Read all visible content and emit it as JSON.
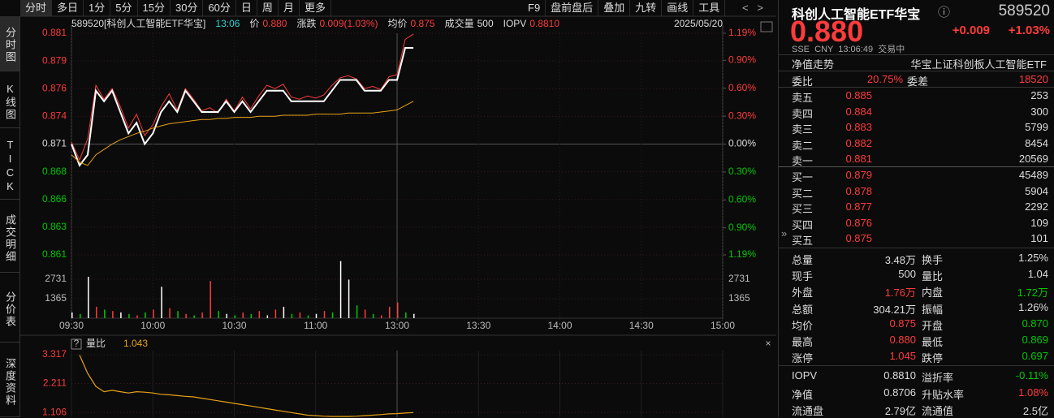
{
  "toolbar": {
    "left": [
      "分时",
      "多日",
      "1分",
      "5分",
      "15分",
      "30分",
      "60分",
      "日",
      "周",
      "月",
      "更多"
    ],
    "right": [
      "F9",
      "盘前盘后",
      "叠加",
      "九转",
      "画线",
      "工具"
    ]
  },
  "side_tabs": [
    "分时图",
    "K线图",
    "TICK",
    "成交明细",
    "分价表",
    "深度资料"
  ],
  "price_chart": {
    "header": [
      {
        "text": "589520[科创人工智能ETF华宝]",
        "color": "#dddddd"
      },
      {
        "text": "13:06",
        "color": "#2ad4d4"
      },
      {
        "text": "价",
        "color": "#dddddd"
      },
      {
        "text": "0.880",
        "color": "#ff3b3b"
      },
      {
        "text": "涨跌",
        "color": "#dddddd"
      },
      {
        "text": "0.009(1.03%)",
        "color": "#ff3b3b"
      },
      {
        "text": "均价",
        "color": "#dddddd"
      },
      {
        "text": "0.875",
        "color": "#ff3b3b"
      },
      {
        "text": "成交量",
        "color": "#dddddd"
      },
      {
        "text": "500",
        "color": "#dddddd"
      },
      {
        "text": "IOPV",
        "color": "#dddddd"
      },
      {
        "text": "0.8810",
        "color": "#ff3b3b"
      }
    ],
    "date": "2025/05/20",
    "xlim": [
      0,
      240
    ],
    "xticks": [
      {
        "value": 0,
        "label": "09:30"
      },
      {
        "value": 30,
        "label": "10:00"
      },
      {
        "value": 60,
        "label": "10:30"
      },
      {
        "value": 90,
        "label": "11:00"
      },
      {
        "value": 120,
        "label": "13:00"
      },
      {
        "value": 150,
        "label": "13:30"
      },
      {
        "value": 180,
        "label": "14:00"
      },
      {
        "value": 210,
        "label": "14:30"
      },
      {
        "value": 240,
        "label": "15:00"
      }
    ],
    "ylim": [
      0.86063,
      0.88137
    ],
    "yticks": [
      {
        "value": 0.88137,
        "label": "0.881"
      },
      {
        "value": 0.87878,
        "label": "0.879"
      },
      {
        "value": 0.87619,
        "label": "0.876"
      },
      {
        "value": 0.87359,
        "label": "0.874"
      },
      {
        "value": 0.871,
        "label": "0.871"
      },
      {
        "value": 0.86841,
        "label": "0.868"
      },
      {
        "value": 0.86581,
        "label": "0.866"
      },
      {
        "value": 0.86322,
        "label": "0.863"
      },
      {
        "value": 0.86063,
        "label": "0.861"
      }
    ],
    "pct_lim": [
      -1.19,
      1.19
    ],
    "pct_ticks": [
      {
        "value": 1.19,
        "label": "1.19%"
      },
      {
        "value": 0.9,
        "label": "0.90%"
      },
      {
        "value": 0.6,
        "label": "0.60%"
      },
      {
        "value": 0.3,
        "label": "0.30%"
      },
      {
        "value": 0,
        "label": "0.00%"
      },
      {
        "value": -0.3,
        "label": "0.30%"
      },
      {
        "value": -0.6,
        "label": "0.60%"
      },
      {
        "value": -0.9,
        "label": "0.90%"
      },
      {
        "value": -1.19,
        "label": "1.19%"
      }
    ],
    "x": [
      0,
      3,
      6,
      9,
      12,
      15,
      18,
      21,
      24,
      27,
      30,
      33,
      36,
      39,
      42,
      45,
      48,
      51,
      54,
      57,
      60,
      63,
      66,
      69,
      72,
      75,
      78,
      81,
      84,
      87,
      90,
      93,
      96,
      99,
      102,
      105,
      108,
      111,
      114,
      117,
      120,
      123,
      126
    ],
    "lines": [
      {
        "color": "#ff3b3b",
        "values": [
          0.8712,
          0.8695,
          0.8715,
          0.8765,
          0.8752,
          0.8762,
          0.8745,
          0.8725,
          0.8738,
          0.8718,
          0.8728,
          0.8745,
          0.8757,
          0.8742,
          0.8762,
          0.8752,
          0.8741,
          0.8744,
          0.8739,
          0.8752,
          0.8741,
          0.8754,
          0.8743,
          0.8755,
          0.8765,
          0.8762,
          0.8766,
          0.8754,
          0.8752,
          0.8755,
          0.8753,
          0.8756,
          0.8765,
          0.8772,
          0.8774,
          0.8771,
          0.8762,
          0.8764,
          0.8761,
          0.8773,
          0.8775,
          0.8808,
          0.8813
        ]
      },
      {
        "color": "#ffffff",
        "values": [
          0.871,
          0.869,
          0.87,
          0.876,
          0.875,
          0.876,
          0.874,
          0.872,
          0.873,
          0.871,
          0.872,
          0.874,
          0.875,
          0.874,
          0.876,
          0.875,
          0.874,
          0.874,
          0.874,
          0.875,
          0.874,
          0.875,
          0.874,
          0.875,
          0.876,
          0.876,
          0.876,
          0.875,
          0.875,
          0.875,
          0.875,
          0.875,
          0.876,
          0.877,
          0.877,
          0.877,
          0.876,
          0.876,
          0.876,
          0.877,
          0.877,
          0.88,
          0.88
        ]
      },
      {
        "color": "#e8a317",
        "values": [
          0.87,
          0.8693,
          0.869,
          0.87,
          0.8705,
          0.871,
          0.8714,
          0.8717,
          0.872,
          0.8722,
          0.8725,
          0.8727,
          0.8729,
          0.873,
          0.8731,
          0.8732,
          0.8733,
          0.8733,
          0.8734,
          0.8734,
          0.8735,
          0.8735,
          0.8735,
          0.8736,
          0.8736,
          0.8736,
          0.8737,
          0.8737,
          0.8737,
          0.8737,
          0.8738,
          0.8738,
          0.8738,
          0.8738,
          0.8739,
          0.8739,
          0.8739,
          0.8739,
          0.874,
          0.8741,
          0.8742,
          0.8746,
          0.875
        ]
      }
    ]
  },
  "volume_chart": {
    "ylim": [
      0,
      4096
    ],
    "yticks": [
      1365,
      2731
    ],
    "values": [
      400,
      300,
      2900,
      800,
      600,
      500,
      400,
      300,
      200,
      400,
      600,
      2200,
      700,
      500,
      300,
      200,
      400,
      2600,
      500,
      300,
      200,
      400,
      300,
      500,
      200,
      600,
      800,
      300,
      400,
      200,
      300,
      500,
      400,
      4000,
      2700,
      900,
      600,
      300,
      200,
      800,
      1100,
      400,
      300
    ],
    "colors": [
      "#ffffff",
      "#00c800",
      "#ffffff",
      "#ff3b3b",
      "#00c800",
      "#ff3b3b",
      "#ffffff",
      "#00c800",
      "#ff3b3b",
      "#00c800",
      "#ff3b3b",
      "#ffffff",
      "#ff3b3b",
      "#00c800",
      "#ff3b3b",
      "#00c800",
      "#ff3b3b",
      "#ff3b3b",
      "#00c800",
      "#ffffff",
      "#00c800",
      "#ff3b3b",
      "#00c800",
      "#ff3b3b",
      "#ffffff",
      "#ff3b3b",
      "#ffffff",
      "#00c800",
      "#ff3b3b",
      "#00c800",
      "#ffffff",
      "#ff3b3b",
      "#00c800",
      "#ffffff",
      "#ffffff",
      "#00c800",
      "#ff3b3b",
      "#00c800",
      "#ff3b3b",
      "#ff3b3b",
      "#ff3b3b",
      "#00c800",
      "#ffffff"
    ]
  },
  "ratio_chart": {
    "help": "?",
    "label": "量比",
    "value_text": "1.043",
    "close": "×",
    "color": "#e8a317",
    "ylim": [
      0.922,
      3.317
    ],
    "yticks": [
      3.317,
      2.211,
      1.106
    ],
    "values": [
      null,
      3.3,
      2.6,
      2.1,
      1.9,
      1.95,
      1.9,
      1.85,
      1.9,
      1.88,
      1.85,
      1.8,
      1.78,
      1.75,
      1.72,
      1.7,
      1.65,
      1.6,
      1.55,
      1.5,
      1.45,
      1.4,
      1.35,
      1.3,
      1.25,
      1.2,
      1.15,
      1.1,
      1.05,
      1.0,
      0.98,
      0.96,
      0.95,
      0.95,
      0.95,
      0.96,
      0.98,
      1.0,
      1.02,
      1.05,
      1.06,
      1.08,
      1.1
    ]
  },
  "quote": {
    "name": "科创人工智能ETF华宝",
    "info_icon": "ⓘ",
    "code": "589520",
    "price": "0.880",
    "change": "+0.009",
    "change_pct": "+1.03%",
    "meta": "SSE  CNY  13:06:49  交易中",
    "nav_tab": "净值走势",
    "full_name": "华宝上证科创板人工智能ETF",
    "weibi": {
      "label": "委比",
      "value": "20.75%",
      "label2": "委差",
      "value2": "18520"
    },
    "asks": [
      [
        "卖五",
        "0.885",
        "253"
      ],
      [
        "卖四",
        "0.884",
        "300"
      ],
      [
        "卖三",
        "0.883",
        "5799"
      ],
      [
        "卖二",
        "0.882",
        "8454"
      ],
      [
        "卖一",
        "0.881",
        "20569"
      ]
    ],
    "bids": [
      [
        "买一",
        "0.879",
        "45489"
      ],
      [
        "买二",
        "0.878",
        "5904"
      ],
      [
        "买三",
        "0.877",
        "2292"
      ],
      [
        "买四",
        "0.876",
        "109"
      ],
      [
        "买五",
        "0.875",
        "101"
      ]
    ],
    "stats": [
      [
        {
          "label": "总量",
          "value": "3.48万",
          "color": "#dddddd"
        },
        {
          "label": "换手",
          "value": "1.25%",
          "color": "#dddddd"
        }
      ],
      [
        {
          "label": "现手",
          "value": "500",
          "color": "#dddddd"
        },
        {
          "label": "量比",
          "value": "1.04",
          "color": "#dddddd"
        }
      ],
      [
        {
          "label": "外盘",
          "value": "1.76万",
          "color": "#ff3b3b"
        },
        {
          "label": "内盘",
          "value": "1.72万",
          "color": "#00c800"
        }
      ],
      [
        {
          "label": "总额",
          "value": "304.21万",
          "color": "#dddddd"
        },
        {
          "label": "振幅",
          "value": "1.26%",
          "color": "#dddddd"
        }
      ],
      [
        {
          "label": "均价",
          "value": "0.875",
          "color": "#ff3b3b"
        },
        {
          "label": "开盘",
          "value": "0.870",
          "color": "#00c800"
        }
      ],
      [
        {
          "label": "最高",
          "value": "0.880",
          "color": "#ff3b3b"
        },
        {
          "label": "最低",
          "value": "0.869",
          "color": "#00c800"
        }
      ],
      [
        {
          "label": "涨停",
          "value": "1.045",
          "color": "#ff3b3b"
        },
        {
          "label": "跌停",
          "value": "0.697",
          "color": "#00c800"
        }
      ],
      [
        {
          "label": "IOPV",
          "value": "0.8810",
          "color": "#dddddd"
        },
        {
          "label": "溢折率",
          "value": "-0.11%",
          "color": "#00c800"
        }
      ],
      [
        {
          "label": "净值",
          "value": "0.8706",
          "color": "#dddddd"
        },
        {
          "label": "升贴水率",
          "value": "1.08%",
          "color": "#ff3b3b"
        }
      ],
      [
        {
          "label": "流通盘",
          "value": "2.79亿",
          "color": "#dddddd"
        },
        {
          "label": "流通值",
          "value": "2.5亿",
          "color": "#dddddd"
        }
      ]
    ]
  }
}
